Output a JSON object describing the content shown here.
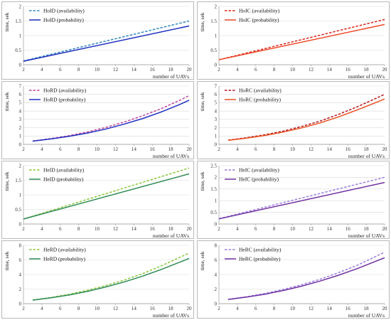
{
  "chart_data": [
    {
      "type": "line",
      "xlabel": "number of UAVs",
      "ylabel": "time, sek",
      "ylim": [
        0,
        2
      ],
      "yticks": [
        0,
        0.5,
        1,
        1.5,
        2
      ],
      "xlim": [
        2,
        20
      ],
      "xticks": [
        2,
        4,
        6,
        8,
        10,
        12,
        14,
        16,
        18,
        20
      ],
      "x": [
        2,
        20
      ],
      "series": [
        {
          "name": "HoID (availability)",
          "color": "#2e86c1",
          "dashed": true,
          "values": [
            0.13,
            1.5
          ]
        },
        {
          "name": "HoID (probability)",
          "color": "#1f2fbf",
          "dashed": false,
          "values": [
            0.12,
            1.33
          ]
        }
      ]
    },
    {
      "type": "line",
      "xlabel": "number of UAVs",
      "ylabel": "time, sek",
      "ylim": [
        0,
        2
      ],
      "yticks": [
        0,
        0.5,
        1,
        1.5,
        2
      ],
      "xlim": [
        2,
        20
      ],
      "xticks": [
        2,
        4,
        6,
        8,
        10,
        12,
        14,
        16,
        18,
        20
      ],
      "x": [
        2,
        20
      ],
      "series": [
        {
          "name": "HoIC (availability)",
          "color": "#d9261c",
          "dashed": true,
          "values": [
            0.17,
            1.55
          ]
        },
        {
          "name": "HoIC (probability)",
          "color": "#ef4a2b",
          "dashed": false,
          "values": [
            0.17,
            1.38
          ]
        }
      ]
    },
    {
      "type": "line",
      "xlabel": "number of UAVs",
      "ylabel": "time, sek",
      "ylim": [
        0,
        7
      ],
      "yticks": [
        0,
        1,
        2,
        3,
        4,
        5,
        6,
        7
      ],
      "xlim": [
        2,
        20
      ],
      "xticks": [
        2,
        4,
        6,
        8,
        10,
        12,
        14,
        16,
        18,
        20
      ],
      "x": [
        3,
        5,
        7,
        9,
        11,
        13,
        15,
        17,
        19,
        20
      ],
      "series": [
        {
          "name": "HoRD (availability)",
          "color": "#c2449a",
          "dashed": true,
          "values": [
            0.4,
            0.7,
            1.05,
            1.5,
            2.05,
            2.7,
            3.45,
            4.3,
            5.3,
            5.85
          ]
        },
        {
          "name": "HoRD (probability)",
          "color": "#1f2fbf",
          "dashed": false,
          "values": [
            0.38,
            0.65,
            0.97,
            1.37,
            1.85,
            2.45,
            3.12,
            3.9,
            4.8,
            5.3
          ]
        }
      ]
    },
    {
      "type": "line",
      "xlabel": "number of UAVs",
      "ylabel": "time, sek",
      "ylim": [
        0,
        7
      ],
      "yticks": [
        0,
        1,
        2,
        3,
        4,
        5,
        6,
        7
      ],
      "xlim": [
        2,
        20
      ],
      "xticks": [
        2,
        4,
        6,
        8,
        10,
        12,
        14,
        16,
        18,
        20
      ],
      "x": [
        3,
        5,
        7,
        9,
        11,
        13,
        15,
        17,
        19,
        20
      ],
      "series": [
        {
          "name": "HoRC (availability)",
          "color": "#b8151c",
          "dashed": true,
          "values": [
            0.5,
            0.8,
            1.15,
            1.6,
            2.15,
            2.8,
            3.6,
            4.5,
            5.5,
            6.0
          ]
        },
        {
          "name": "HoRC (probability)",
          "color": "#e8501f",
          "dashed": false,
          "values": [
            0.48,
            0.75,
            1.07,
            1.48,
            1.98,
            2.58,
            3.3,
            4.12,
            5.0,
            5.45
          ]
        }
      ]
    },
    {
      "type": "line",
      "xlabel": "number of UAVs",
      "ylabel": "time, sek",
      "ylim": [
        0,
        2
      ],
      "yticks": [
        0,
        0.5,
        1,
        1.5,
        2
      ],
      "xlim": [
        2,
        20
      ],
      "xticks": [
        2,
        4,
        6,
        8,
        10,
        12,
        14,
        16,
        18,
        20
      ],
      "x": [
        2,
        20
      ],
      "series": [
        {
          "name": "HeID (availability)",
          "color": "#8cc63f",
          "dashed": true,
          "values": [
            0.17,
            1.92
          ]
        },
        {
          "name": "HeID (probability)",
          "color": "#2e8b57",
          "dashed": false,
          "values": [
            0.17,
            1.72
          ]
        }
      ]
    },
    {
      "type": "line",
      "xlabel": "number of UAVs",
      "ylabel": "time, sek",
      "ylim": [
        0,
        2.5
      ],
      "yticks": [
        0,
        0.5,
        1,
        1.5,
        2,
        2.5
      ],
      "xlim": [
        2,
        20
      ],
      "xticks": [
        2,
        4,
        6,
        8,
        10,
        12,
        14,
        16,
        18,
        20
      ],
      "x": [
        2,
        20
      ],
      "series": [
        {
          "name": "HeIC (availability)",
          "color": "#9b7fe0",
          "dashed": true,
          "values": [
            0.23,
            2.0
          ]
        },
        {
          "name": "HeIC (probability)",
          "color": "#7030a0",
          "dashed": false,
          "values": [
            0.22,
            1.78
          ]
        }
      ]
    },
    {
      "type": "line",
      "xlabel": "number of UAVs",
      "ylabel": "time, sek",
      "ylim": [
        0,
        8
      ],
      "yticks": [
        0,
        2,
        4,
        6,
        8
      ],
      "xlim": [
        2,
        20
      ],
      "xticks": [
        2,
        4,
        6,
        8,
        10,
        12,
        14,
        16,
        18,
        20
      ],
      "x": [
        3,
        5,
        7,
        9,
        11,
        13,
        15,
        17,
        19,
        20
      ],
      "series": [
        {
          "name": "HeRD (availability)",
          "color": "#8cc63f",
          "dashed": true,
          "values": [
            0.5,
            0.85,
            1.3,
            1.85,
            2.5,
            3.25,
            4.15,
            5.2,
            6.35,
            6.95
          ]
        },
        {
          "name": "HeRD (probability)",
          "color": "#2e8b57",
          "dashed": false,
          "values": [
            0.48,
            0.8,
            1.2,
            1.7,
            2.3,
            3.0,
            3.8,
            4.7,
            5.7,
            6.2
          ]
        }
      ]
    },
    {
      "type": "line",
      "xlabel": "number of UAVs",
      "ylabel": "time, sek",
      "ylim": [
        0,
        8
      ],
      "yticks": [
        0,
        2,
        4,
        6,
        8
      ],
      "xlim": [
        2,
        20
      ],
      "xticks": [
        2,
        4,
        6,
        8,
        10,
        12,
        14,
        16,
        18,
        20
      ],
      "x": [
        3,
        5,
        7,
        9,
        11,
        13,
        15,
        17,
        19,
        20
      ],
      "series": [
        {
          "name": "HeRC (availability)",
          "color": "#9b7fe0",
          "dashed": true,
          "values": [
            0.6,
            0.95,
            1.4,
            1.95,
            2.6,
            3.35,
            4.25,
            5.25,
            6.45,
            7.05
          ]
        },
        {
          "name": "HeRC (probability)",
          "color": "#7030a0",
          "dashed": false,
          "values": [
            0.58,
            0.9,
            1.3,
            1.8,
            2.4,
            3.1,
            3.9,
            4.8,
            5.8,
            6.3
          ]
        }
      ]
    }
  ]
}
